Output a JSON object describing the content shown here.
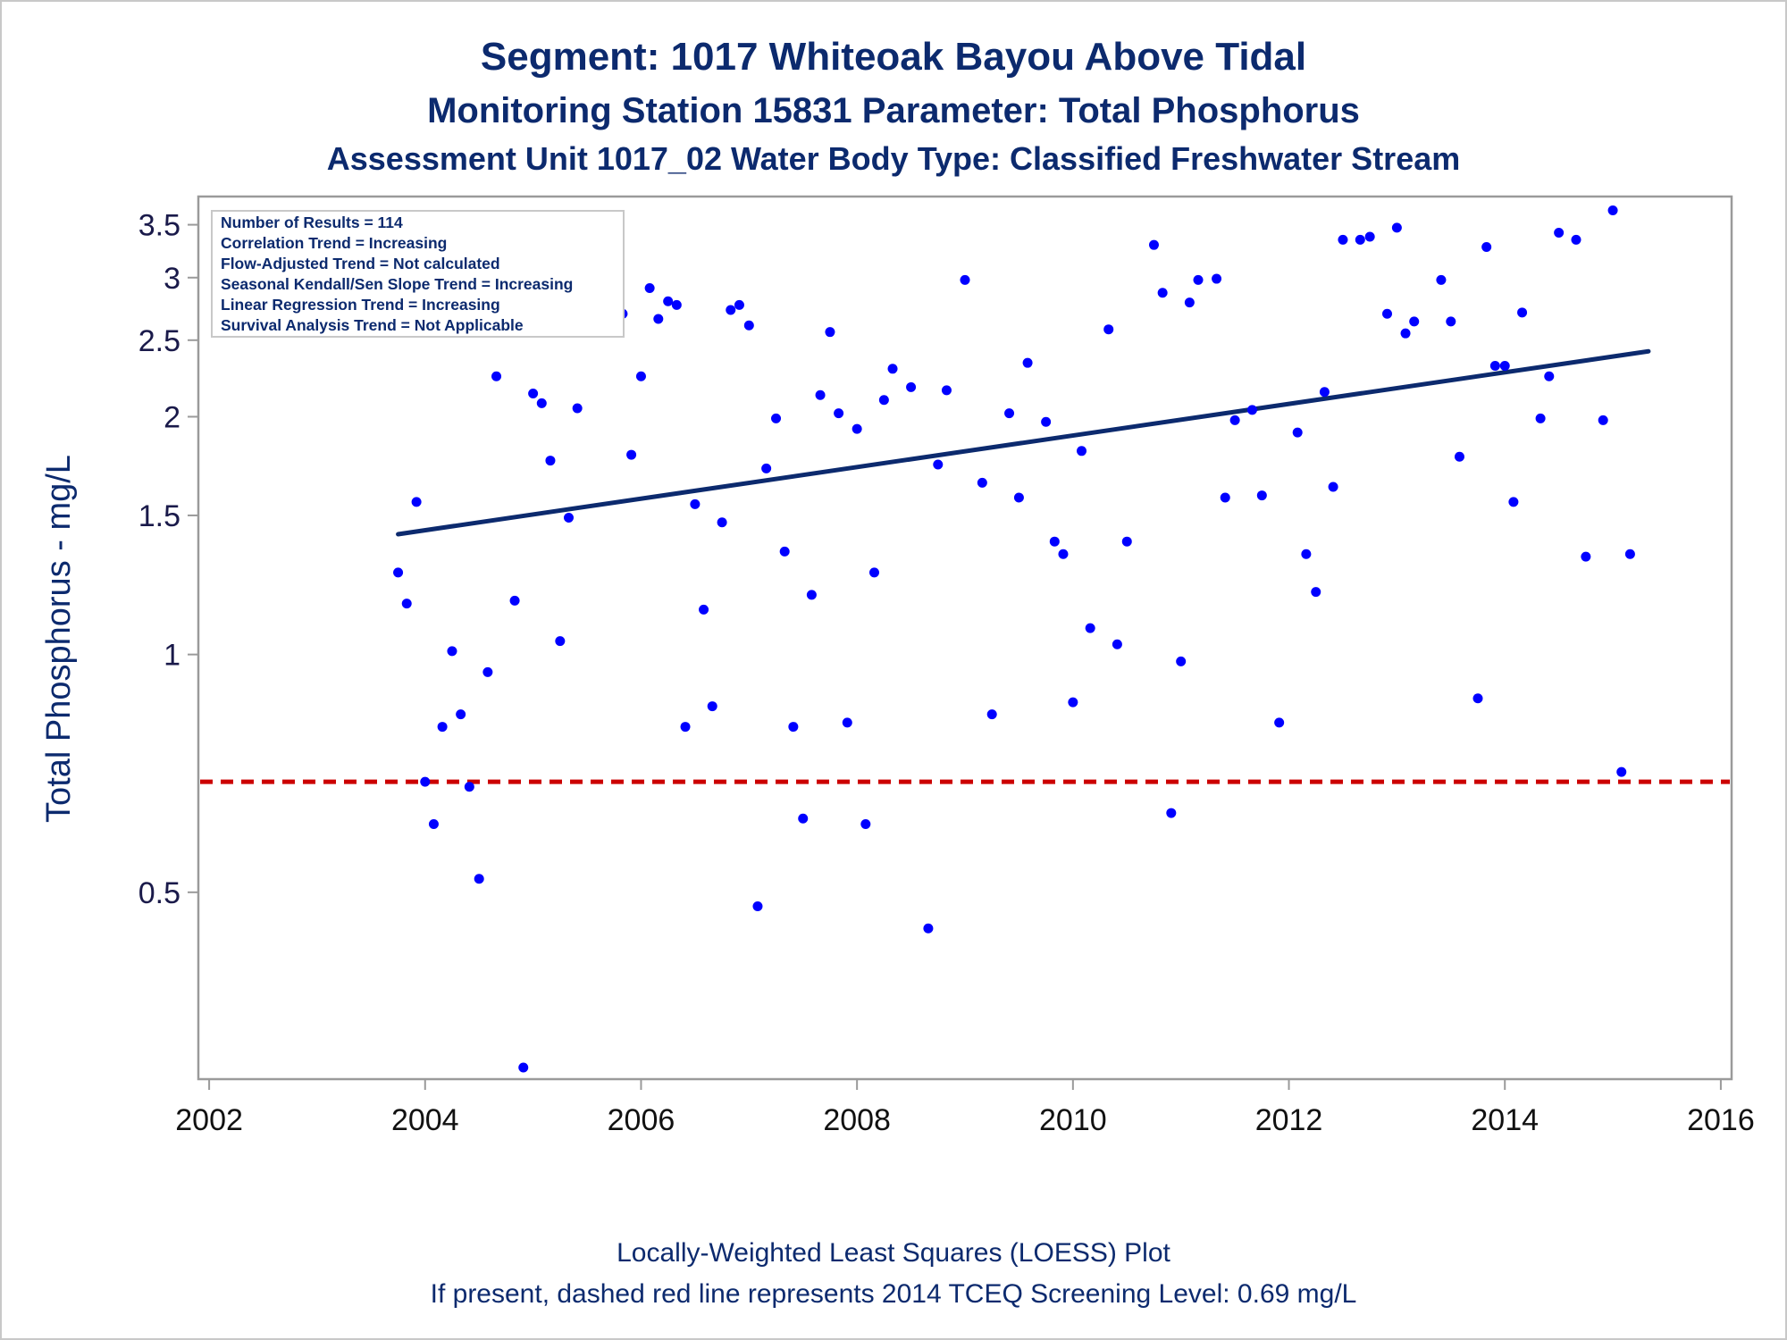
{
  "chart_data": {
    "type": "scatter",
    "title": "Segment: 1017  Whiteoak Bayou Above Tidal",
    "subtitle": "Monitoring Station 15831 Parameter: Total Phosphorus",
    "subtitle2": "Assessment Unit 1017_02   Water Body Type: Classified Freshwater Stream",
    "xlabel": "",
    "ylabel": "Total Phosphorus - mg/L",
    "y_scale": "log",
    "xlim": [
      2001.9,
      2016.1
    ],
    "ylim": [
      0.29,
      3.8
    ],
    "x_ticks": [
      2002,
      2004,
      2006,
      2008,
      2010,
      2012,
      2014,
      2016
    ],
    "x_tick_labels": [
      "2002",
      "2004",
      "2006",
      "2008",
      "2010",
      "2012",
      "2014",
      "2016"
    ],
    "y_ticks": [
      0.5,
      1,
      1.5,
      2,
      2.5,
      3,
      3.5
    ],
    "y_tick_labels": [
      "0.5",
      "1",
      "1.5",
      "2",
      "2.5",
      "3",
      "3.5"
    ],
    "grid": false,
    "legend_position": "top-left",
    "info_lines": [
      "Number of Results = 114",
      "Correlation Trend = Increasing",
      "Flow-Adjusted Trend = Not calculated",
      "Seasonal Kendall/Sen Slope Trend = Increasing",
      "Linear Regression Trend = Increasing",
      "Survival Analysis Trend = Not Applicable"
    ],
    "footnote1": "Locally-Weighted Least Squares (LOESS) Plot",
    "footnote2": "If present, dashed red line represents 2014 TCEQ Screening Level: 0.69 mg/L",
    "screening_level": 0.69,
    "trend_line": {
      "x": [
        2003.75,
        2015.33
      ],
      "y": [
        1.42,
        2.42
      ]
    },
    "points": [
      [
        2003.75,
        1.27
      ],
      [
        2003.83,
        1.16
      ],
      [
        2003.92,
        1.56
      ],
      [
        2004.0,
        0.69
      ],
      [
        2004.08,
        0.61
      ],
      [
        2004.16,
        0.81
      ],
      [
        2004.25,
        1.01
      ],
      [
        2004.33,
        0.84
      ],
      [
        2004.41,
        0.68
      ],
      [
        2004.5,
        0.52
      ],
      [
        2004.58,
        0.95
      ],
      [
        2004.66,
        2.25
      ],
      [
        2004.75,
        2.63
      ],
      [
        2004.83,
        1.17
      ],
      [
        2004.91,
        0.3
      ],
      [
        2005.0,
        2.14
      ],
      [
        2005.08,
        2.08
      ],
      [
        2005.16,
        1.76
      ],
      [
        2005.25,
        1.04
      ],
      [
        2005.33,
        1.49
      ],
      [
        2005.41,
        2.05
      ],
      [
        2005.75,
        2.73
      ],
      [
        2005.83,
        2.7
      ],
      [
        2005.91,
        1.79
      ],
      [
        2006.0,
        2.25
      ],
      [
        2006.08,
        2.91
      ],
      [
        2006.16,
        2.66
      ],
      [
        2006.25,
        2.8
      ],
      [
        2006.33,
        2.77
      ],
      [
        2006.41,
        0.81
      ],
      [
        2006.5,
        1.55
      ],
      [
        2006.58,
        1.14
      ],
      [
        2006.66,
        0.86
      ],
      [
        2006.75,
        1.47
      ],
      [
        2006.83,
        2.73
      ],
      [
        2006.91,
        2.77
      ],
      [
        2007.0,
        2.61
      ],
      [
        2007.08,
        0.48
      ],
      [
        2007.16,
        1.72
      ],
      [
        2007.25,
        1.99
      ],
      [
        2007.33,
        1.35
      ],
      [
        2007.41,
        0.81
      ],
      [
        2007.5,
        0.62
      ],
      [
        2007.58,
        1.19
      ],
      [
        2007.66,
        2.13
      ],
      [
        2007.75,
        2.56
      ],
      [
        2007.83,
        2.02
      ],
      [
        2007.91,
        0.82
      ],
      [
        2008.0,
        1.93
      ],
      [
        2008.08,
        0.61
      ],
      [
        2008.16,
        1.27
      ],
      [
        2008.25,
        2.1
      ],
      [
        2008.33,
        2.3
      ],
      [
        2008.5,
        2.18
      ],
      [
        2008.66,
        0.45
      ],
      [
        2008.75,
        1.74
      ],
      [
        2008.83,
        2.16
      ],
      [
        2009.0,
        2.98
      ],
      [
        2009.16,
        1.65
      ],
      [
        2009.25,
        0.84
      ],
      [
        2009.41,
        2.02
      ],
      [
        2009.5,
        1.58
      ],
      [
        2009.58,
        2.34
      ],
      [
        2009.75,
        1.97
      ],
      [
        2009.83,
        1.39
      ],
      [
        2009.91,
        1.34
      ],
      [
        2010.0,
        0.87
      ],
      [
        2010.08,
        1.81
      ],
      [
        2010.16,
        1.08
      ],
      [
        2010.33,
        2.58
      ],
      [
        2010.41,
        1.03
      ],
      [
        2010.5,
        1.39
      ],
      [
        2010.75,
        3.3
      ],
      [
        2010.83,
        2.87
      ],
      [
        2010.91,
        0.63
      ],
      [
        2011.0,
        0.98
      ],
      [
        2011.08,
        2.79
      ],
      [
        2011.16,
        2.98
      ],
      [
        2011.33,
        2.99
      ],
      [
        2011.41,
        1.58
      ],
      [
        2011.5,
        1.98
      ],
      [
        2011.66,
        2.04
      ],
      [
        2011.75,
        1.59
      ],
      [
        2011.91,
        0.82
      ],
      [
        2012.08,
        1.91
      ],
      [
        2012.16,
        1.34
      ],
      [
        2012.25,
        1.2
      ],
      [
        2012.33,
        2.15
      ],
      [
        2012.41,
        1.63
      ],
      [
        2012.5,
        3.35
      ],
      [
        2012.66,
        3.35
      ],
      [
        2012.75,
        3.38
      ],
      [
        2012.91,
        2.7
      ],
      [
        2013.0,
        3.47
      ],
      [
        2013.08,
        2.55
      ],
      [
        2013.16,
        2.64
      ],
      [
        2013.41,
        2.98
      ],
      [
        2013.5,
        2.64
      ],
      [
        2013.58,
        1.78
      ],
      [
        2013.75,
        0.88
      ],
      [
        2013.83,
        3.28
      ],
      [
        2013.91,
        2.32
      ],
      [
        2014.0,
        2.32
      ],
      [
        2014.08,
        1.56
      ],
      [
        2014.16,
        2.71
      ],
      [
        2014.33,
        1.99
      ],
      [
        2014.41,
        2.25
      ],
      [
        2014.5,
        3.42
      ],
      [
        2014.66,
        3.35
      ],
      [
        2014.75,
        1.33
      ],
      [
        2014.91,
        1.98
      ],
      [
        2015.0,
        3.65
      ],
      [
        2015.08,
        0.71
      ],
      [
        2015.16,
        1.34
      ]
    ]
  },
  "colors": {
    "title": "#0c2a6e",
    "points": "#0000ff",
    "trend": "#0c2a6e",
    "screening": "#cc0000",
    "frame": "#9a9a9a"
  }
}
